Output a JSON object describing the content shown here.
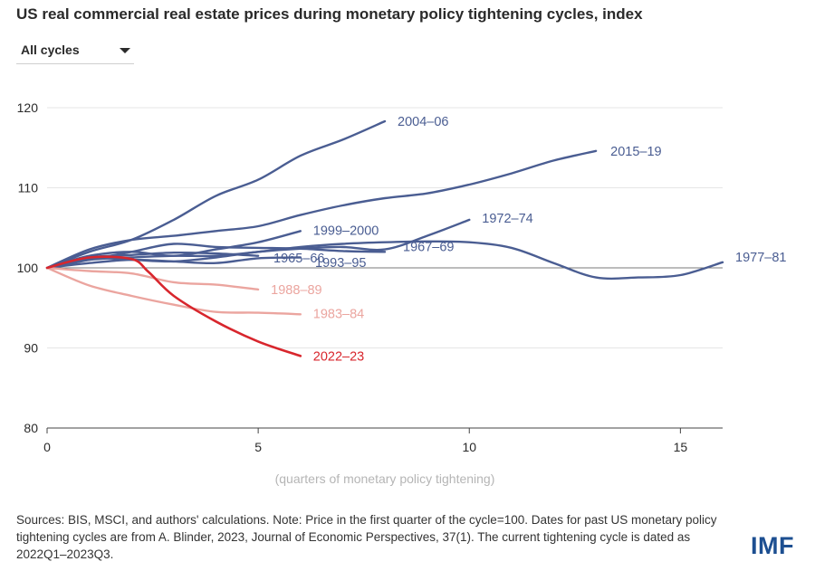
{
  "header": {
    "title": "US real commercial real estate prices during monetary policy tightening cycles, index",
    "dropdown_value": "All cycles"
  },
  "footer": {
    "sources": "Sources: BIS, MSCI, and authors' calculations. Note: Price in the first quarter of the cycle=100. Dates for past US monetary policy tightening cycles are from A. Blinder, 2023, Journal of Economic Perspectives, 37(1). The current tightening cycle is dated as 2022Q1–2023Q3.",
    "logo": "IMF"
  },
  "colors": {
    "past": "#4a5d92",
    "mild": "#eba59f",
    "current": "#d8262d",
    "axis": "#7a7a7a",
    "grid": "#e6e6e6"
  },
  "chart_data": {
    "type": "line",
    "xlabel": "(quarters of monetary policy tightening)",
    "ylabel": "",
    "xlim": [
      0,
      16
    ],
    "ylim": [
      80,
      120
    ],
    "xticks": [
      0,
      5,
      10,
      15
    ],
    "yticks": [
      80,
      90,
      100,
      110,
      120
    ],
    "grid": true,
    "reference_line": 100,
    "series": [
      {
        "name": "2004–06",
        "color": "past",
        "x": [
          0,
          1,
          2,
          3,
          4,
          5,
          6,
          7,
          8
        ],
        "y": [
          100,
          102,
          103.5,
          106,
          109,
          111,
          114,
          116,
          118.3
        ]
      },
      {
        "name": "2015–19",
        "color": "past",
        "x": [
          0,
          1,
          2,
          3,
          4,
          5,
          6,
          7,
          8,
          9,
          10,
          11,
          12,
          13
        ],
        "y": [
          100,
          102.3,
          103.5,
          104,
          104.6,
          105.2,
          106.6,
          107.8,
          108.7,
          109.3,
          110.4,
          111.8,
          113.4,
          114.6
        ]
      },
      {
        "name": "1999–2000",
        "color": "past",
        "x": [
          0,
          1,
          2,
          3,
          4,
          5,
          6
        ],
        "y": [
          100,
          101.5,
          102,
          101.5,
          102.3,
          103.2,
          104.6
        ]
      },
      {
        "name": "1972–74",
        "color": "past",
        "x": [
          0,
          1,
          2,
          3,
          4,
          5,
          6,
          7,
          8,
          9,
          10
        ],
        "y": [
          100,
          101.2,
          101,
          100.8,
          101.3,
          102,
          102.4,
          102.6,
          102.3,
          104,
          106
        ]
      },
      {
        "name": "1977–81",
        "color": "past",
        "x": [
          0,
          1,
          2,
          3,
          4,
          5,
          6,
          7,
          8,
          9,
          10,
          11,
          12,
          13,
          14,
          15,
          16
        ],
        "y": [
          100,
          101,
          101.3,
          101.5,
          101.5,
          102,
          102.6,
          103,
          103.2,
          103.3,
          103.2,
          102.5,
          100.6,
          98.8,
          98.8,
          99.1,
          100.7
        ]
      },
      {
        "name": "1967–69",
        "color": "past",
        "x": [
          0,
          1,
          2,
          3,
          4,
          5,
          6,
          7,
          8
        ],
        "y": [
          100,
          101,
          102,
          103,
          102.6,
          102.5,
          102.4,
          102.1,
          102
        ]
      },
      {
        "name": "1965–66",
        "color": "past",
        "x": [
          0,
          1,
          2,
          3,
          4,
          5
        ],
        "y": [
          100,
          101.3,
          101.6,
          101.9,
          101.8,
          101.5
        ]
      },
      {
        "name": "1993–95",
        "color": "past",
        "x": [
          0,
          1,
          2,
          3,
          4,
          5,
          6
        ],
        "y": [
          100,
          100.6,
          101,
          100.8,
          100.6,
          101.2,
          101.3
        ]
      },
      {
        "name": "1988–89",
        "color": "mild",
        "x": [
          0,
          1,
          2,
          3,
          4,
          5
        ],
        "y": [
          100,
          99.6,
          99.3,
          98.2,
          97.9,
          97.3
        ]
      },
      {
        "name": "1983–84",
        "color": "mild",
        "x": [
          0,
          1,
          2,
          3,
          4,
          5,
          6
        ],
        "y": [
          100,
          97.8,
          96.5,
          95.4,
          94.5,
          94.4,
          94.2
        ]
      },
      {
        "name": "2022–23",
        "color": "current",
        "x": [
          0,
          1,
          2,
          2.4,
          3,
          4,
          5,
          6
        ],
        "y": [
          100,
          101.3,
          101.1,
          99.5,
          96.5,
          93.3,
          90.8,
          89
        ]
      }
    ],
    "labels": {
      "2004–06": "2004–06",
      "2015–19": "2015–19",
      "1999–2000": "1999–2000",
      "1972–74": "1972–74",
      "1977–81": "1977–81",
      "1967–69": "1967–69",
      "1965–66": "1965–66",
      "1993–95": "1993–95",
      "1988–89": "1988–89",
      "1983–84": "1983–84",
      "2022–23": "2022–23"
    }
  }
}
